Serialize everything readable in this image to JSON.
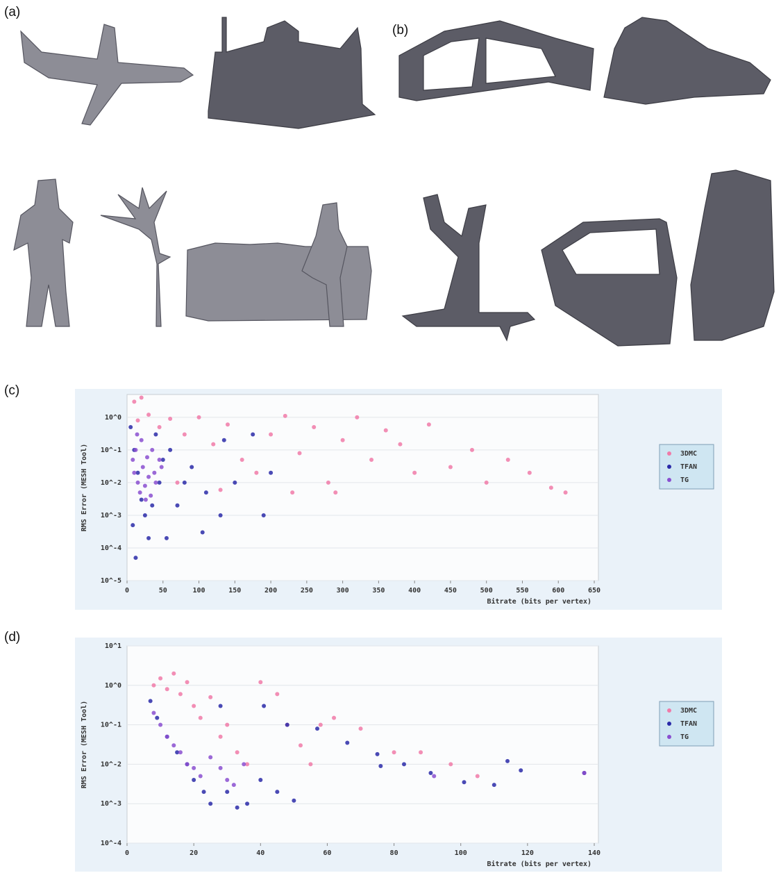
{
  "panels": [
    "(a)",
    "(b)",
    "(c)",
    "(d)"
  ],
  "chart_data": [
    {
      "type": "scatter",
      "x_label": "Bitrate (bits per vertex)",
      "y_label": "RMS Error (MESH Tool)",
      "xlim": [
        0,
        650
      ],
      "xticks": [
        0,
        50,
        100,
        150,
        200,
        250,
        300,
        350,
        400,
        450,
        500,
        550,
        600,
        650
      ],
      "ylim": [
        1e-05,
        5
      ],
      "log_y": true,
      "grid": true,
      "legend": "right",
      "yticks": [
        {
          "value": 1,
          "label": "10^0"
        },
        {
          "value": 0.1,
          "label": "10^-1"
        },
        {
          "value": 0.01,
          "label": "10^-2"
        },
        {
          "value": 0.001,
          "label": "10^-3"
        },
        {
          "value": 0.0001,
          "label": "10^-4"
        },
        {
          "value": 1e-05,
          "label": "10^-5"
        }
      ],
      "series": [
        {
          "name": "3DMC",
          "color": "#f07aa8",
          "x": [
            10,
            20,
            30,
            15,
            45,
            60,
            80,
            100,
            120,
            140,
            160,
            180,
            200,
            220,
            240,
            260,
            280,
            300,
            320,
            340,
            360,
            380,
            400,
            420,
            450,
            480,
            500,
            530,
            560,
            590,
            610,
            70,
            130,
            230,
            290
          ],
          "values": [
            3,
            4,
            1.2,
            0.8,
            0.5,
            0.9,
            0.3,
            1,
            0.15,
            0.6,
            0.05,
            0.02,
            0.3,
            1.1,
            0.08,
            0.5,
            0.01,
            0.2,
            1,
            0.05,
            0.4,
            0.15,
            0.02,
            0.6,
            0.03,
            0.1,
            0.01,
            0.05,
            0.02,
            0.007,
            0.005,
            0.01,
            0.006,
            0.005,
            0.005
          ]
        },
        {
          "name": "TFAN",
          "color": "#2a2aa8",
          "x": [
            5,
            10,
            15,
            20,
            25,
            30,
            12,
            40,
            50,
            55,
            60,
            70,
            80,
            90,
            105,
            110,
            130,
            135,
            150,
            175,
            190,
            200,
            35,
            45,
            8
          ],
          "values": [
            0.5,
            0.1,
            0.02,
            0.003,
            0.001,
            0.0002,
            5e-05,
            0.3,
            0.05,
            0.0002,
            0.1,
            0.002,
            0.01,
            0.03,
            0.0003,
            0.005,
            0.001,
            0.2,
            0.01,
            0.3,
            0.001,
            0.02,
            0.002,
            0.01,
            0.0005
          ]
        },
        {
          "name": "TG",
          "color": "#8a4fd0",
          "x": [
            8,
            10,
            12,
            15,
            18,
            20,
            22,
            25,
            28,
            30,
            33,
            35,
            38,
            40,
            45,
            48,
            14,
            26
          ],
          "values": [
            0.05,
            0.02,
            0.1,
            0.01,
            0.005,
            0.2,
            0.03,
            0.008,
            0.06,
            0.015,
            0.004,
            0.1,
            0.02,
            0.01,
            0.05,
            0.03,
            0.3,
            0.003
          ]
        }
      ]
    },
    {
      "type": "scatter",
      "x_label": "Bitrate (bits per vertex)",
      "y_label": "RMS Error (MESH Tool)",
      "xlim": [
        0,
        140
      ],
      "xticks": [
        0,
        20,
        40,
        60,
        80,
        100,
        120,
        140
      ],
      "ylim": [
        0.0001,
        10
      ],
      "log_y": true,
      "grid": true,
      "legend": "right",
      "yticks": [
        {
          "value": 10,
          "label": "10^1"
        },
        {
          "value": 1,
          "label": "10^0"
        },
        {
          "value": 0.1,
          "label": "10^-1"
        },
        {
          "value": 0.01,
          "label": "10^-2"
        },
        {
          "value": 0.001,
          "label": "10^-3"
        },
        {
          "value": 0.0001,
          "label": "10^-4"
        }
      ],
      "series": [
        {
          "name": "3DMC",
          "color": "#f07aa8",
          "x": [
            8,
            10,
            12,
            14,
            16,
            18,
            20,
            22,
            25,
            28,
            30,
            33,
            36,
            40,
            45,
            48,
            52,
            55,
            58,
            62,
            70,
            80,
            88,
            97,
            105,
            137
          ],
          "values": [
            1,
            1.5,
            0.8,
            2,
            0.6,
            1.2,
            0.3,
            0.15,
            0.5,
            0.05,
            0.1,
            0.02,
            0.01,
            1.2,
            0.6,
            0.1,
            0.03,
            0.01,
            0.1,
            0.15,
            0.08,
            0.02,
            0.02,
            0.01,
            0.005,
            0.006
          ]
        },
        {
          "name": "TFAN",
          "color": "#2a2aa8",
          "x": [
            7,
            9,
            12,
            15,
            18,
            20,
            23,
            25,
            28,
            30,
            33,
            36,
            40,
            45,
            50,
            41,
            48,
            57,
            66,
            75,
            76,
            83,
            91,
            101,
            110,
            114,
            118,
            137
          ],
          "values": [
            0.4,
            0.15,
            0.05,
            0.02,
            0.01,
            0.004,
            0.002,
            0.001,
            0.3,
            0.002,
            0.0008,
            0.001,
            0.004,
            0.002,
            0.0012,
            0.3,
            0.1,
            0.08,
            0.035,
            0.018,
            0.009,
            0.01,
            0.006,
            0.0035,
            0.003,
            0.012,
            0.007,
            0.006
          ]
        },
        {
          "name": "TG",
          "color": "#8a4fd0",
          "x": [
            8,
            10,
            12,
            14,
            16,
            18,
            20,
            22,
            25,
            28,
            30,
            32,
            35,
            92,
            137
          ],
          "values": [
            0.2,
            0.1,
            0.05,
            0.03,
            0.02,
            0.01,
            0.008,
            0.005,
            0.015,
            0.008,
            0.004,
            0.003,
            0.01,
            0.005,
            0.006
          ]
        }
      ]
    }
  ]
}
